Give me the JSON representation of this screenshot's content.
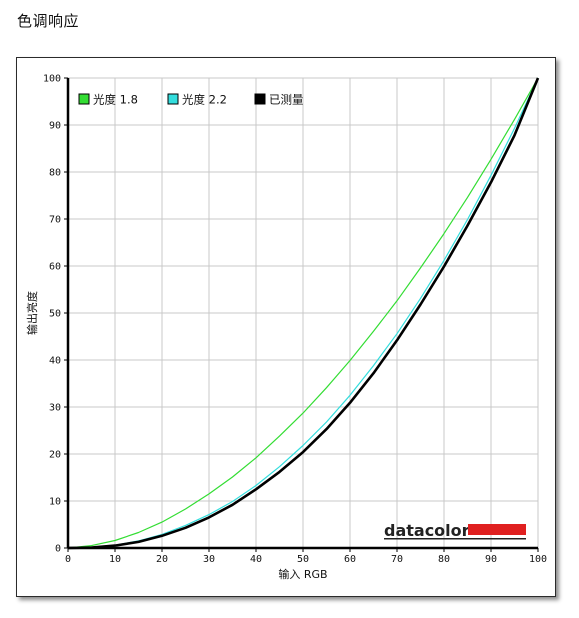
{
  "page": {
    "title": "色调响应"
  },
  "colors": {
    "grid": "#c8c8c8",
    "axis": "#000000",
    "gamma18": "#33dd33",
    "gamma22": "#33dddd",
    "measured": "#000000",
    "brand_bar": "#e02020"
  },
  "brand": {
    "name": "datacolor"
  },
  "chart_data": {
    "type": "line",
    "xlabel": "输入 RGB",
    "ylabel": "输出亮度",
    "xlim": [
      0,
      100
    ],
    "ylim": [
      0,
      100
    ],
    "xticks": [
      0,
      10,
      20,
      30,
      40,
      50,
      60,
      70,
      80,
      90,
      100
    ],
    "yticks": [
      0,
      10,
      20,
      30,
      40,
      50,
      60,
      70,
      80,
      90,
      100
    ],
    "grid": true,
    "legend_position": "top-left",
    "x": [
      0,
      5,
      10,
      15,
      20,
      25,
      30,
      35,
      40,
      45,
      50,
      55,
      60,
      65,
      70,
      75,
      80,
      85,
      90,
      95,
      100
    ],
    "series": [
      {
        "name": "光度 1.8",
        "color_key": "gamma18",
        "values": [
          0,
          0.5,
          1.6,
          3.3,
          5.5,
          8.3,
          11.5,
          15.1,
          19.2,
          23.8,
          28.7,
          34.1,
          39.9,
          46.1,
          52.6,
          59.6,
          66.9,
          74.6,
          82.7,
          91.2,
          100
        ]
      },
      {
        "name": "光度 2.2",
        "color_key": "gamma22",
        "values": [
          0,
          0.1,
          0.6,
          1.5,
          2.9,
          4.8,
          7.1,
          9.9,
          13.3,
          17.3,
          21.8,
          26.8,
          32.5,
          38.8,
          45.6,
          53.1,
          61.2,
          69.9,
          79.3,
          89.3,
          100
        ]
      },
      {
        "name": "已测量",
        "color_key": "measured",
        "values": [
          0,
          0.1,
          0.5,
          1.3,
          2.6,
          4.3,
          6.5,
          9.2,
          12.5,
          16.2,
          20.4,
          25.3,
          30.9,
          37.2,
          44.2,
          51.8,
          59.9,
          68.6,
          77.8,
          87.8,
          100
        ]
      }
    ]
  }
}
